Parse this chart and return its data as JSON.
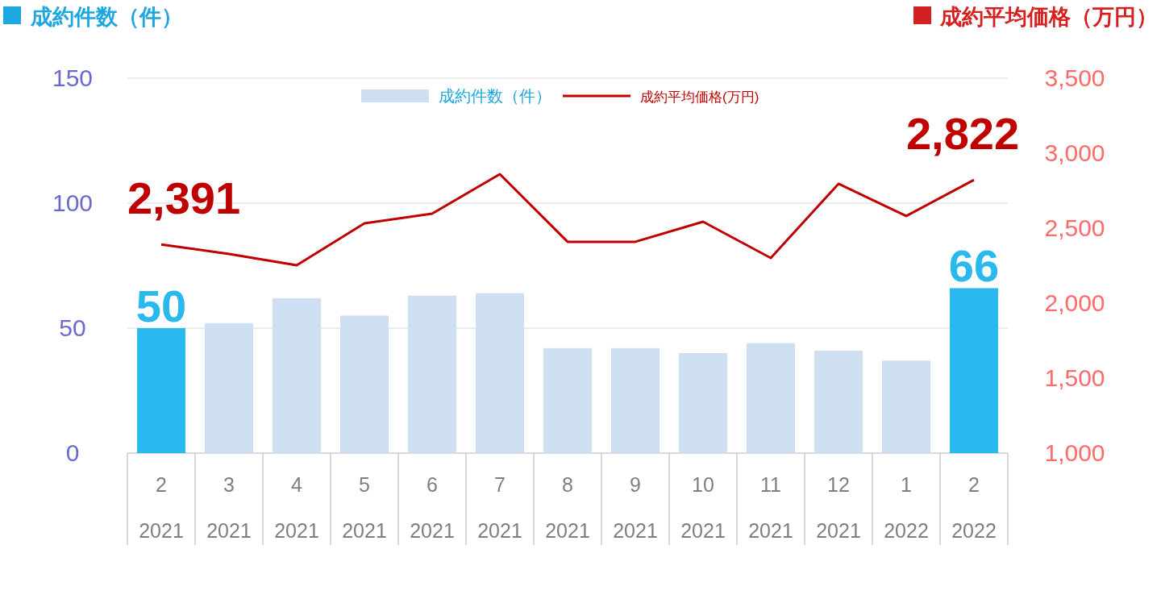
{
  "chart_data": {
    "type": "bar",
    "ylabel": "成約件数（件）",
    "y2label": "成約平均価格（万円）",
    "categories": [
      "2\n2021",
      "3\n2021",
      "4\n2021",
      "5\n2021",
      "6\n2021",
      "7\n2021",
      "8\n2021",
      "9\n2021",
      "10\n2021",
      "11\n2021",
      "12\n2021",
      "1\n2022",
      "2\n2022"
    ],
    "series": [
      {
        "name": "成約件数（件）",
        "color": "#cfdff2",
        "colors": [
          "#29b9ee",
          "#cfdff2",
          "#cfdff2",
          "#cfdff2",
          "#cfdff2",
          "#cfdff2",
          "#cfdff2",
          "#cfdff2",
          "#cfdff2",
          "#cfdff2",
          "#cfdff2",
          "#cfdff2",
          "#29b9ee"
        ],
        "values": [
          50,
          52,
          62,
          55,
          63,
          64,
          42,
          42,
          40,
          44,
          41,
          37,
          66
        ],
        "value_labels": [
          "50",
          null,
          null,
          null,
          null,
          null,
          null,
          null,
          null,
          null,
          null,
          null,
          "66"
        ]
      },
      {
        "name": "成約平均価格(万円)",
        "type": "line",
        "axis": "y2",
        "color": "#c00000",
        "values": [
          2391,
          2328,
          2253,
          2532,
          2597,
          2860,
          2409,
          2409,
          2543,
          2301,
          2796,
          2581,
          2822
        ],
        "value_labels": [
          "2,391",
          null,
          null,
          null,
          null,
          null,
          null,
          null,
          null,
          null,
          null,
          null,
          "2,822"
        ]
      }
    ],
    "ylim": [
      0,
      150
    ],
    "yticks": [
      0,
      50,
      100,
      150
    ],
    "y2lim": [
      1000,
      3500
    ],
    "y2ticks": [
      {
        "value": 1000,
        "label": "1,000"
      },
      {
        "value": 1500,
        "label": "1,500"
      },
      {
        "value": 2000,
        "label": "2,000"
      },
      {
        "value": 2500,
        "label": "2,500"
      },
      {
        "value": 3000,
        "label": "3,000"
      },
      {
        "value": 3500,
        "label": "3,500"
      }
    ],
    "grid": "y",
    "legend": "top",
    "marker": "none",
    "line_style": "solid"
  }
}
